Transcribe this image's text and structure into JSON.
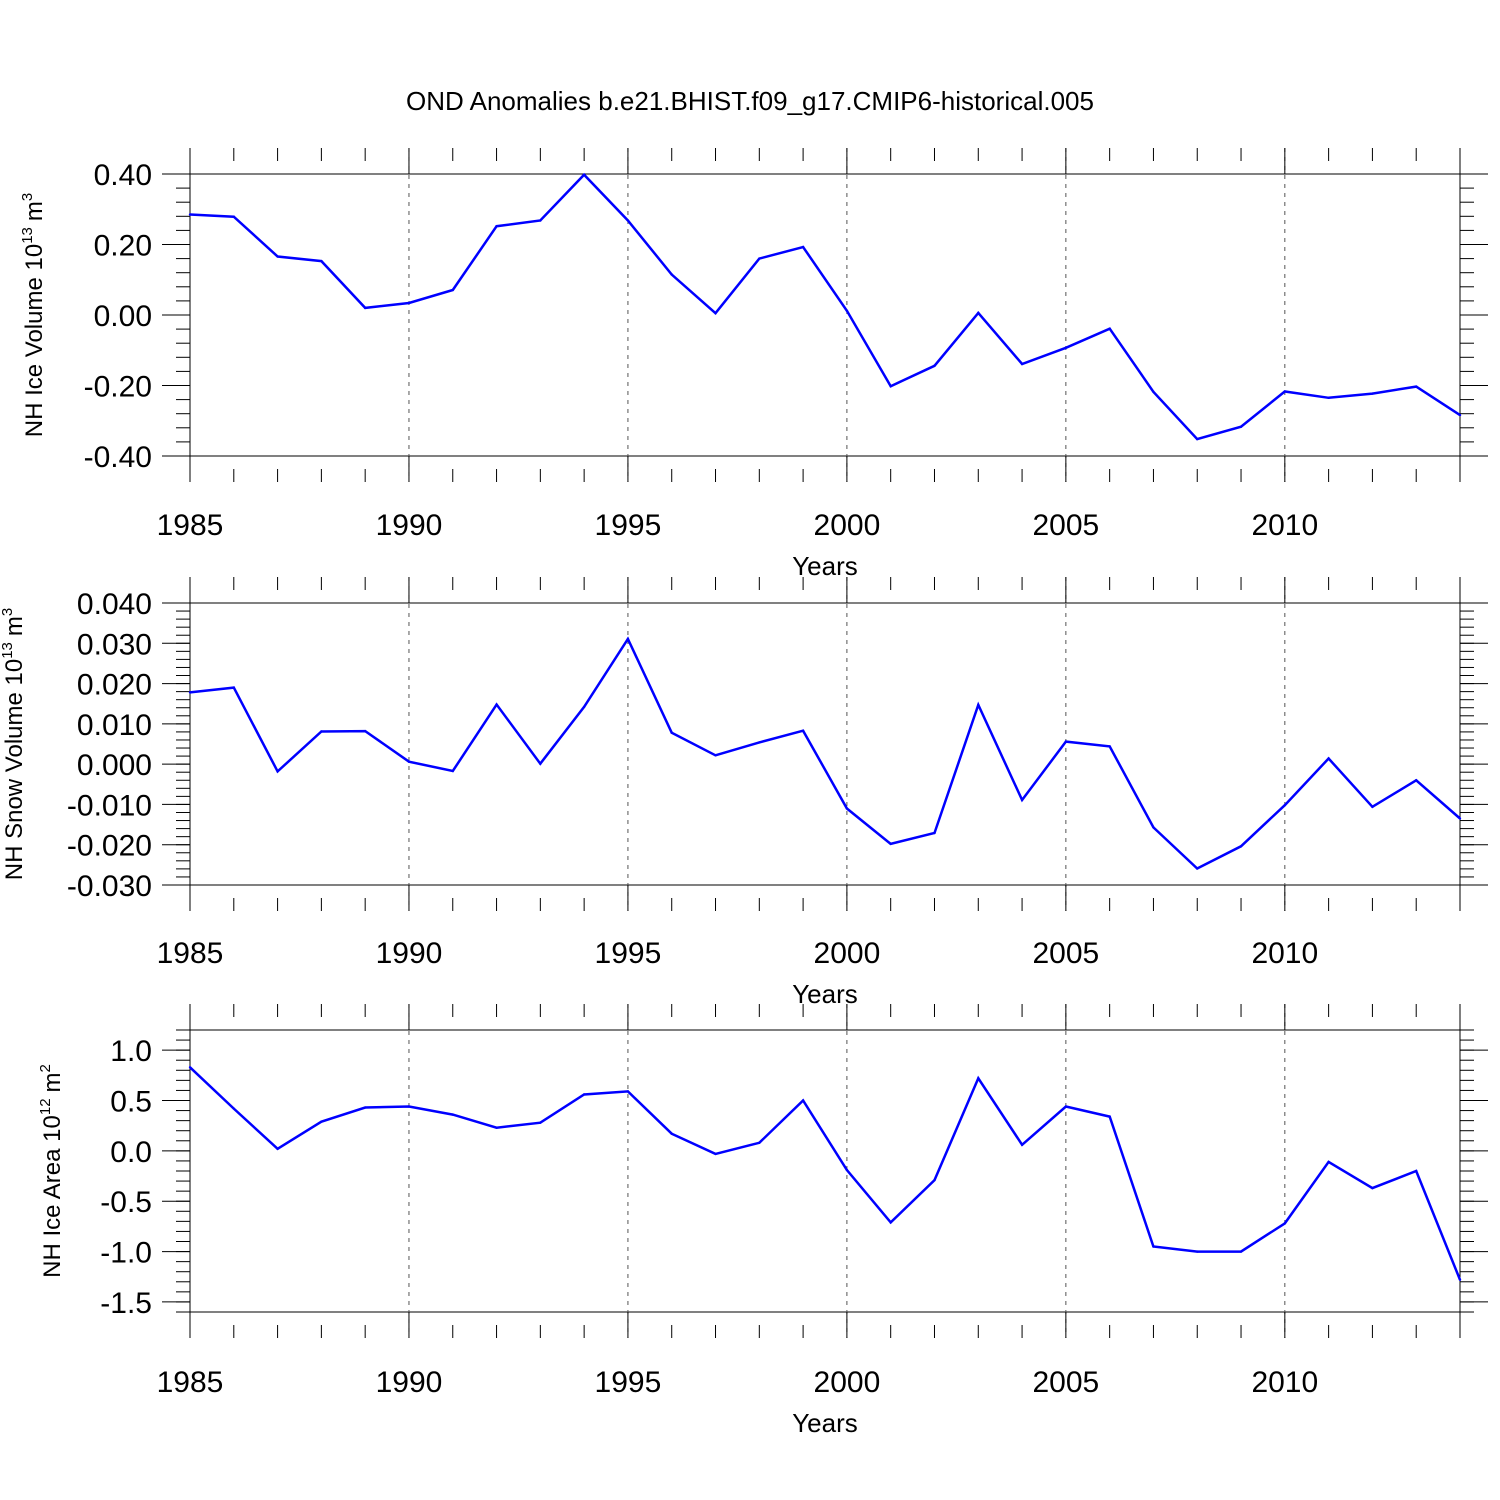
{
  "title": "OND Anomalies b.e21.BHIST.f09_g17.CMIP6-historical.005",
  "colors": {
    "line": "#0000ff",
    "axis": "#000000",
    "grid": "#555555"
  },
  "chart_data": [
    {
      "type": "line",
      "name": "ice-volume",
      "ylabel_text": "NH Ice Volume 10",
      "ylabel_exp": "13",
      "ylabel_unit": "m",
      "ylabel_unit_exp": "3",
      "xlabel": "Years",
      "xlim": [
        1985,
        2014
      ],
      "ylim": [
        -0.4,
        0.4
      ],
      "xticks": [
        1985,
        1990,
        1995,
        2000,
        2005,
        2010
      ],
      "xtick_labels": [
        "1985",
        "1990",
        "1995",
        "2000",
        "2005",
        "2010"
      ],
      "yticks": [
        -0.4,
        -0.2,
        0.0,
        0.2,
        0.4
      ],
      "ytick_labels": [
        "-0.40",
        "-0.20",
        "0.00",
        "0.20",
        "0.40"
      ],
      "y_minor_step": 0.04,
      "x": [
        1985,
        1986,
        1987,
        1988,
        1989,
        1990,
        1991,
        1992,
        1993,
        1994,
        1995,
        1996,
        1997,
        1998,
        1999,
        2000,
        2001,
        2002,
        2003,
        2004,
        2005,
        2006,
        2007,
        2008,
        2009,
        2010,
        2011,
        2012,
        2013,
        2014
      ],
      "values": [
        0.285,
        0.279,
        0.166,
        0.153,
        0.02,
        0.034,
        0.071,
        0.252,
        0.268,
        0.398,
        0.268,
        0.115,
        0.005,
        0.16,
        0.193,
        0.012,
        -0.202,
        -0.144,
        0.006,
        -0.139,
        -0.093,
        -0.039,
        -0.218,
        -0.352,
        -0.317,
        -0.217,
        -0.235,
        -0.223,
        -0.203,
        -0.284
      ]
    },
    {
      "type": "line",
      "name": "snow-volume",
      "ylabel_text": "NH Snow Volume 10",
      "ylabel_exp": "13",
      "ylabel_unit": "m",
      "ylabel_unit_exp": "3",
      "xlabel": "Years",
      "xlim": [
        1985,
        2014
      ],
      "ylim": [
        -0.03,
        0.04
      ],
      "xticks": [
        1985,
        1990,
        1995,
        2000,
        2005,
        2010
      ],
      "xtick_labels": [
        "1985",
        "1990",
        "1995",
        "2000",
        "2005",
        "2010"
      ],
      "yticks": [
        -0.03,
        -0.02,
        -0.01,
        0.0,
        0.01,
        0.02,
        0.03,
        0.04
      ],
      "ytick_labels": [
        "-0.030",
        "-0.020",
        "-0.010",
        "0.000",
        "0.010",
        "0.020",
        "0.030",
        "0.040"
      ],
      "y_minor_step": 0.002,
      "x": [
        1985,
        1986,
        1987,
        1988,
        1989,
        1990,
        1991,
        1992,
        1993,
        1994,
        1995,
        1996,
        1997,
        1998,
        1999,
        2000,
        2001,
        2002,
        2003,
        2004,
        2005,
        2006,
        2007,
        2008,
        2009,
        2010,
        2011,
        2012,
        2013,
        2014
      ],
      "values": [
        0.0178,
        0.019,
        -0.0018,
        0.0081,
        0.0082,
        0.0006,
        -0.0017,
        0.0148,
        0.0001,
        0.0142,
        0.0311,
        0.0078,
        0.0022,
        0.0054,
        0.0083,
        -0.011,
        -0.0198,
        -0.0171,
        0.0147,
        -0.0089,
        0.0056,
        0.0044,
        -0.0157,
        -0.0259,
        -0.0204,
        -0.0102,
        0.0014,
        -0.0106,
        -0.004,
        -0.0135
      ]
    },
    {
      "type": "line",
      "name": "ice-area",
      "ylabel_text": "NH Ice Area 10",
      "ylabel_exp": "12",
      "ylabel_unit": "m",
      "ylabel_unit_exp": "2",
      "xlabel": "Years",
      "xlim": [
        1985,
        2014
      ],
      "ylim": [
        -1.6,
        1.2
      ],
      "xticks": [
        1985,
        1990,
        1995,
        2000,
        2005,
        2010
      ],
      "xtick_labels": [
        "1985",
        "1990",
        "1995",
        "2000",
        "2005",
        "2010"
      ],
      "yticks": [
        -1.5,
        -1.0,
        -0.5,
        0.0,
        0.5,
        1.0
      ],
      "ytick_labels": [
        "-1.5",
        "-1.0",
        "-0.5",
        "0.0",
        "0.5",
        "1.0"
      ],
      "y_minor_step": 0.1,
      "x": [
        1985,
        1986,
        1987,
        1988,
        1989,
        1990,
        1991,
        1992,
        1993,
        1994,
        1995,
        1996,
        1997,
        1998,
        1999,
        2000,
        2001,
        2002,
        2003,
        2004,
        2005,
        2006,
        2007,
        2008,
        2009,
        2010,
        2011,
        2012,
        2013,
        2014
      ],
      "values": [
        0.83,
        0.42,
        0.02,
        0.29,
        0.43,
        0.44,
        0.36,
        0.23,
        0.28,
        0.56,
        0.59,
        0.17,
        -0.03,
        0.08,
        0.5,
        -0.19,
        -0.71,
        -0.29,
        0.72,
        0.06,
        0.44,
        0.34,
        -0.95,
        -1.0,
        -1.0,
        -0.72,
        -0.11,
        -0.37,
        -0.2,
        -1.28
      ]
    }
  ]
}
